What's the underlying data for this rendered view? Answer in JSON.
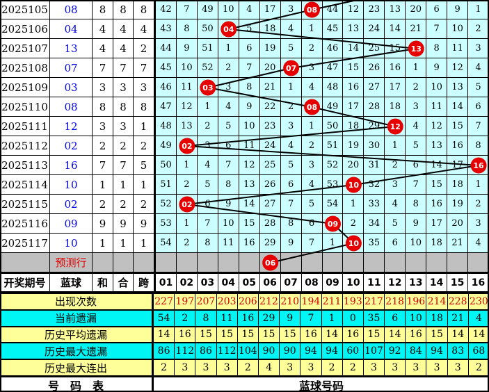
{
  "colors": {
    "cell_bg": "#CCFFFF",
    "stat_yellow": "#FFFF99",
    "stat_cyan": "#00F5F5",
    "prediction_gray": "#C0C0C0",
    "ball_red": "#E60000",
    "blue_text": "#0000EE",
    "red_text": "#D00000",
    "line": "#000000"
  },
  "left_table": {
    "headers": [
      "开奖期号",
      "蓝球",
      "和",
      "合",
      "跨"
    ],
    "prediction_label": "预测行",
    "rows": [
      {
        "period": "2025105",
        "ball": "08",
        "he": "8",
        "hezhi": "8",
        "kua": "8"
      },
      {
        "period": "2025106",
        "ball": "04",
        "he": "4",
        "hezhi": "4",
        "kua": "4"
      },
      {
        "period": "2025107",
        "ball": "13",
        "he": "4",
        "hezhi": "4",
        "kua": "2"
      },
      {
        "period": "2025108",
        "ball": "07",
        "he": "7",
        "hezhi": "7",
        "kua": "7"
      },
      {
        "period": "2025109",
        "ball": "03",
        "he": "3",
        "hezhi": "3",
        "kua": "3"
      },
      {
        "period": "2025110",
        "ball": "08",
        "he": "8",
        "hezhi": "8",
        "kua": "8"
      },
      {
        "period": "2025111",
        "ball": "12",
        "he": "3",
        "hezhi": "3",
        "kua": "1"
      },
      {
        "period": "2025112",
        "ball": "02",
        "he": "2",
        "hezhi": "2",
        "kua": "2"
      },
      {
        "period": "2025113",
        "ball": "16",
        "he": "7",
        "hezhi": "7",
        "kua": "5"
      },
      {
        "period": "2025114",
        "ball": "10",
        "he": "1",
        "hezhi": "1",
        "kua": "1"
      },
      {
        "period": "2025115",
        "ball": "02",
        "he": "2",
        "hezhi": "2",
        "kua": "2"
      },
      {
        "period": "2025116",
        "ball": "09",
        "he": "9",
        "hezhi": "9",
        "kua": "9"
      },
      {
        "period": "2025117",
        "ball": "10",
        "he": "1",
        "hezhi": "1",
        "kua": "1"
      }
    ]
  },
  "grid": {
    "columns": [
      "01",
      "02",
      "03",
      "04",
      "05",
      "06",
      "07",
      "08",
      "09",
      "10",
      "11",
      "12",
      "13",
      "14",
      "15",
      "16"
    ],
    "rows": [
      {
        "ball": 8,
        "cells": [
          42,
          7,
          49,
          10,
          4,
          17,
          3,
          null,
          44,
          12,
          23,
          13,
          20,
          6,
          9,
          1
        ]
      },
      {
        "ball": 4,
        "cells": [
          43,
          8,
          50,
          null,
          5,
          18,
          4,
          1,
          45,
          13,
          24,
          14,
          21,
          7,
          10,
          2
        ]
      },
      {
        "ball": 13,
        "cells": [
          44,
          9,
          51,
          1,
          6,
          19,
          5,
          2,
          46,
          14,
          25,
          15,
          null,
          8,
          11,
          3
        ]
      },
      {
        "ball": 7,
        "cells": [
          45,
          10,
          52,
          2,
          7,
          20,
          null,
          3,
          47,
          15,
          26,
          16,
          1,
          9,
          12,
          4
        ]
      },
      {
        "ball": 3,
        "cells": [
          46,
          11,
          null,
          3,
          8,
          21,
          1,
          4,
          48,
          16,
          27,
          17,
          2,
          10,
          13,
          5
        ]
      },
      {
        "ball": 8,
        "cells": [
          47,
          12,
          1,
          4,
          9,
          22,
          2,
          null,
          49,
          17,
          28,
          18,
          3,
          11,
          14,
          6
        ]
      },
      {
        "ball": 12,
        "cells": [
          48,
          13,
          2,
          5,
          10,
          23,
          3,
          1,
          50,
          18,
          29,
          null,
          4,
          12,
          15,
          7
        ]
      },
      {
        "ball": 2,
        "cells": [
          49,
          null,
          3,
          6,
          11,
          24,
          4,
          2,
          51,
          19,
          30,
          1,
          5,
          13,
          16,
          8
        ]
      },
      {
        "ball": 16,
        "cells": [
          50,
          1,
          4,
          7,
          12,
          25,
          5,
          3,
          52,
          20,
          31,
          2,
          6,
          14,
          17,
          null
        ]
      },
      {
        "ball": 10,
        "cells": [
          51,
          2,
          5,
          8,
          13,
          26,
          6,
          4,
          53,
          null,
          32,
          3,
          7,
          15,
          18,
          1
        ]
      },
      {
        "ball": 2,
        "cells": [
          52,
          null,
          6,
          9,
          14,
          27,
          7,
          5,
          54,
          1,
          33,
          4,
          8,
          16,
          19,
          2
        ]
      },
      {
        "ball": 9,
        "cells": [
          53,
          1,
          7,
          10,
          15,
          28,
          8,
          6,
          null,
          2,
          34,
          5,
          9,
          17,
          20,
          3
        ]
      },
      {
        "ball": 10,
        "cells": [
          54,
          2,
          8,
          11,
          16,
          29,
          9,
          7,
          1,
          null,
          35,
          6,
          10,
          18,
          21,
          4
        ]
      },
      {
        "ball": 6,
        "prediction": true,
        "cells": [
          null,
          null,
          null,
          null,
          null,
          null,
          null,
          null,
          null,
          null,
          null,
          null,
          null,
          null,
          null,
          null
        ]
      }
    ],
    "incoming_line": true
  },
  "stats": [
    {
      "label": "出现次数",
      "bg": "yellow",
      "red": true,
      "values": [
        227,
        197,
        207,
        203,
        206,
        212,
        210,
        194,
        211,
        193,
        217,
        218,
        196,
        214,
        228,
        230
      ]
    },
    {
      "label": "当前遗漏",
      "bg": "cyan",
      "red": false,
      "values": [
        54,
        2,
        8,
        11,
        16,
        29,
        9,
        7,
        1,
        0,
        35,
        6,
        10,
        18,
        21,
        4
      ]
    },
    {
      "label": "历史平均遗漏",
      "bg": "yellow",
      "red": false,
      "values": [
        14,
        16,
        15,
        15,
        15,
        15,
        15,
        16,
        14,
        16,
        15,
        14,
        16,
        15,
        14,
        14
      ]
    },
    {
      "label": "历史最大遗漏",
      "bg": "cyan",
      "red": false,
      "values": [
        86,
        112,
        86,
        112,
        104,
        90,
        90,
        94,
        94,
        60,
        107,
        92,
        84,
        94,
        83,
        68
      ]
    },
    {
      "label": "历史最大连出",
      "bg": "yellow",
      "red": false,
      "values": [
        2,
        3,
        3,
        3,
        2,
        4,
        3,
        3,
        2,
        2,
        3,
        3,
        3,
        3,
        3,
        2
      ]
    }
  ],
  "footer": {
    "left": "号　码　表",
    "right": "蓝球号码"
  },
  "chart_data": {
    "type": "line",
    "x": [
      "2025105",
      "2025106",
      "2025107",
      "2025108",
      "2025109",
      "2025110",
      "2025111",
      "2025112",
      "2025113",
      "2025114",
      "2025115",
      "2025116",
      "2025117",
      "预测行"
    ],
    "y": [
      8,
      4,
      13,
      7,
      3,
      8,
      12,
      2,
      16,
      10,
      2,
      9,
      10,
      6
    ],
    "ylabel": "蓝球号码",
    "ylim": [
      1,
      16
    ],
    "legend_position": "none",
    "grid": true
  }
}
